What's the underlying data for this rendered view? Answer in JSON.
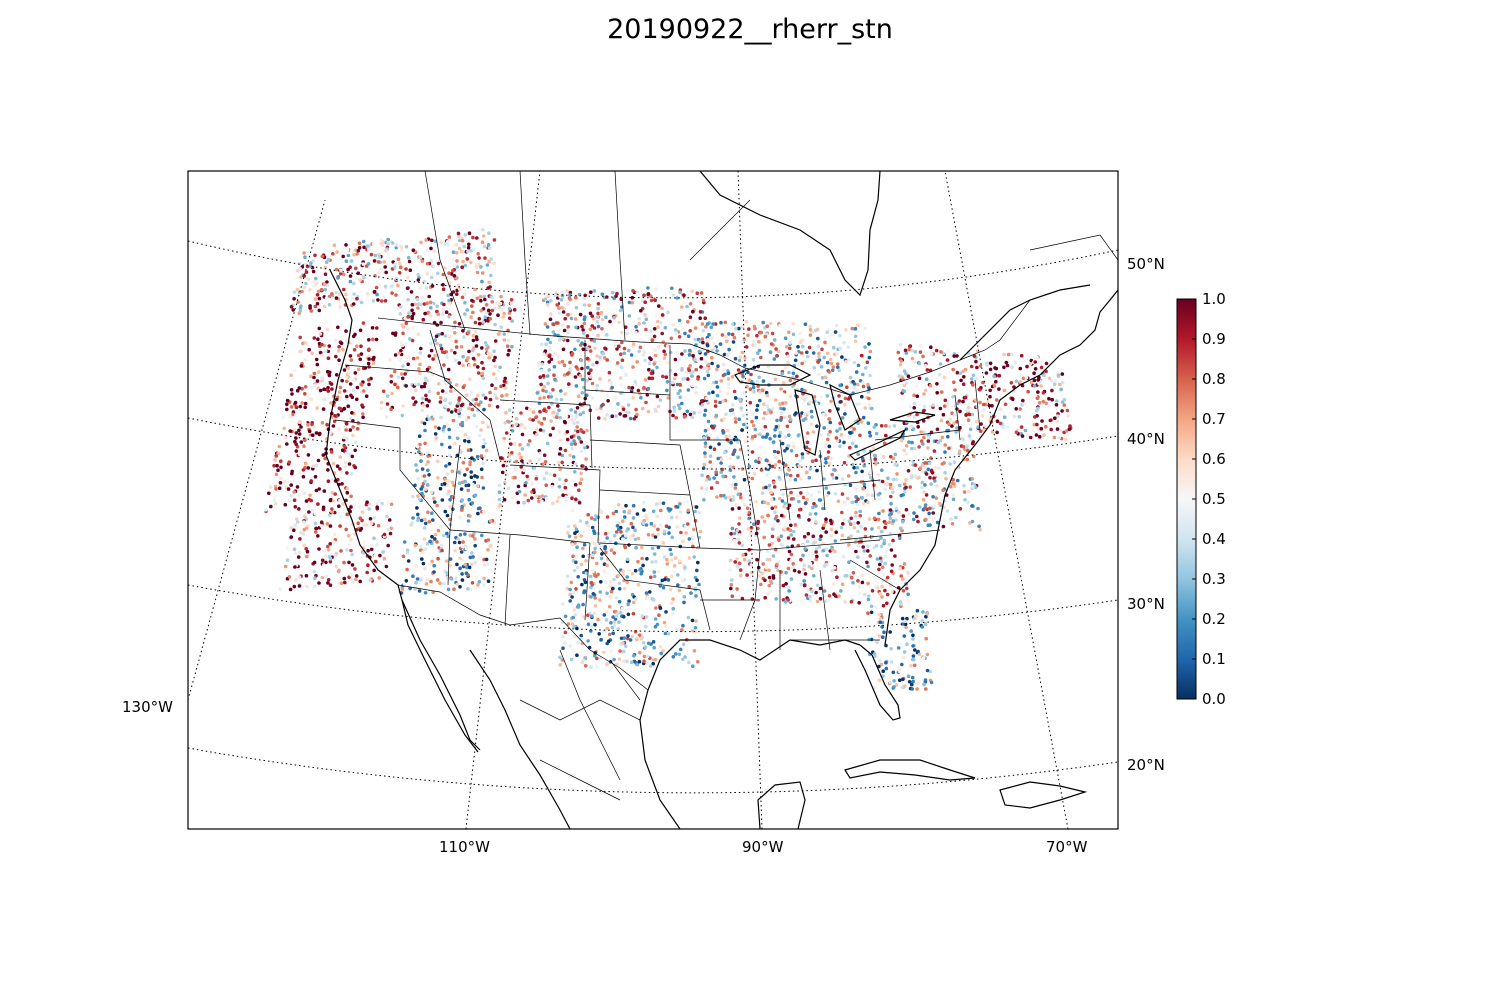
{
  "title": "20190922__rherr_stn",
  "map": {
    "projection": "lambert-conformal-conic",
    "coastlines": true,
    "country_borders": true,
    "state_borders": true,
    "graticule_style": "dotted",
    "lat_labels": [
      "50°N",
      "40°N",
      "30°N",
      "20°N"
    ],
    "lon_labels": [
      "130°W",
      "110°W",
      "90°W",
      "70°W"
    ]
  },
  "colorbar": {
    "colormap": "RdBu_r",
    "colors": [
      "#053061",
      "#2166ac",
      "#4393c3",
      "#92c5de",
      "#d1e5f0",
      "#f7f7f7",
      "#fddbc7",
      "#f4a582",
      "#d6604d",
      "#b2182b",
      "#67001f"
    ],
    "ticks": [
      "0.0",
      "0.1",
      "0.2",
      "0.3",
      "0.4",
      "0.5",
      "0.6",
      "0.7",
      "0.8",
      "0.9",
      "1.0"
    ],
    "vmin": 0.0,
    "vmax": 1.0
  },
  "stations": {
    "description_of_pattern": "Several thousand station points, each colored by its value on the 0-1 scale. Higher values are concentrated along the Pacific coast, California, Idaho/Montana and parts of the Southeast; lower values appear over Texas/Oklahoma, Arizona, Utah and the Great Lakes region.",
    "regions": [
      {
        "lon": [
          -124,
          -118
        ],
        "lat": [
          37,
          48
        ],
        "value_mean": 0.85
      },
      {
        "lon": [
          -122,
          -115
        ],
        "lat": [
          32,
          37
        ],
        "value_mean": 0.75
      },
      {
        "lon": [
          -117,
          -108
        ],
        "lat": [
          42,
          49
        ],
        "value_mean": 0.7
      },
      {
        "lon": [
          -114,
          -109
        ],
        "lat": [
          36,
          42
        ],
        "value_mean": 0.35
      },
      {
        "lon": [
          -114,
          -108
        ],
        "lat": [
          31,
          36
        ],
        "value_mean": 0.4
      },
      {
        "lon": [
          -108,
          -102
        ],
        "lat": [
          36,
          42
        ],
        "value_mean": 0.65
      },
      {
        "lon": [
          -106,
          -94
        ],
        "lat": [
          41,
          49
        ],
        "value_mean": 0.6
      },
      {
        "lon": [
          -103,
          -94
        ],
        "lat": [
          26,
          36
        ],
        "value_mean": 0.4
      },
      {
        "lon": [
          -94,
          -82
        ],
        "lat": [
          36,
          47
        ],
        "value_mean": 0.45
      },
      {
        "lon": [
          -92,
          -80
        ],
        "lat": [
          30,
          36
        ],
        "value_mean": 0.65
      },
      {
        "lon": [
          -82,
          -75
        ],
        "lat": [
          35,
          41
        ],
        "value_mean": 0.55
      },
      {
        "lon": [
          -80,
          -68
        ],
        "lat": [
          41,
          46
        ],
        "value_mean": 0.7
      },
      {
        "lon": [
          -83,
          -79
        ],
        "lat": [
          25,
          30
        ],
        "value_mean": 0.35
      },
      {
        "lon": [
          -125,
          -110
        ],
        "lat": [
          49,
          53
        ],
        "value_mean": 0.65
      }
    ]
  }
}
